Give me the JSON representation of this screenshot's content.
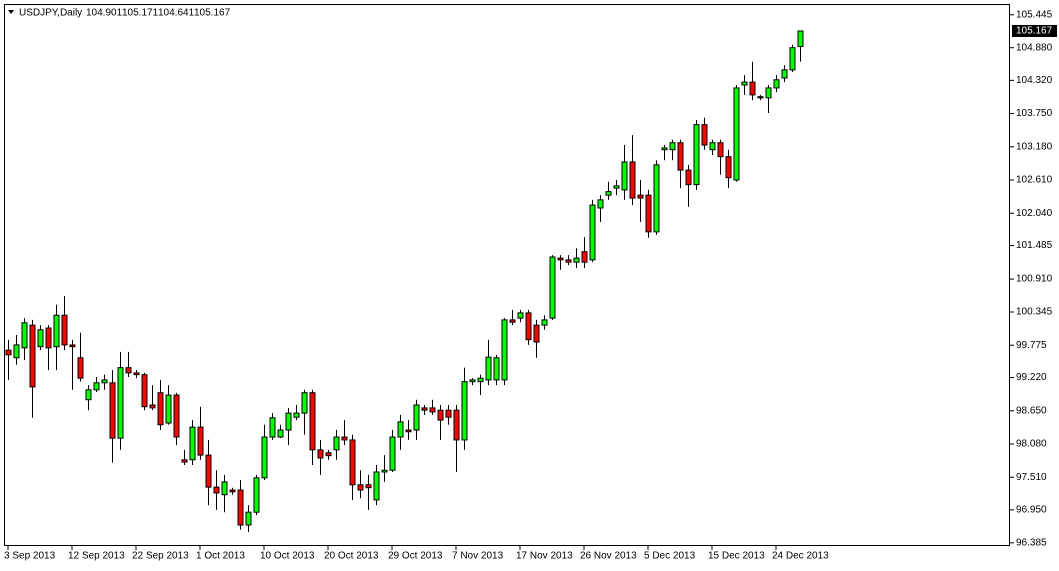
{
  "chart_data": {
    "type": "candlestick",
    "title": "USDJPY,Daily",
    "categories": [
      "3 Sep 2013",
      null,
      null,
      null,
      null,
      null,
      null,
      null,
      "12 Sep 2013",
      null,
      null,
      null,
      null,
      null,
      null,
      null,
      "22 Sep 2013",
      null,
      null,
      null,
      null,
      null,
      null,
      null,
      "1 Oct 2013",
      null,
      null,
      null,
      null,
      null,
      null,
      null,
      "10 Oct 2013",
      null,
      null,
      null,
      null,
      null,
      null,
      null,
      "20 Oct 2013",
      null,
      null,
      null,
      null,
      null,
      null,
      null,
      "29 Oct 2013",
      null,
      null,
      null,
      null,
      null,
      null,
      null,
      "7 Nov 2013",
      null,
      null,
      null,
      null,
      null,
      null,
      null,
      "17 Nov 2013",
      null,
      null,
      null,
      null,
      null,
      null,
      null,
      "26 Nov 2013",
      null,
      null,
      null,
      null,
      null,
      null,
      null,
      "5 Dec 2013",
      null,
      null,
      null,
      null,
      null,
      null,
      null,
      "15 Dec 2013",
      null,
      null,
      null,
      null,
      null,
      null,
      null,
      "24 Dec 2013",
      null,
      null,
      null
    ],
    "open": [
      99.69,
      99.56,
      99.73,
      100.12,
      99.75,
      100.07,
      99.75,
      100.29,
      99.78,
      99.56,
      98.84,
      99.01,
      99.13,
      99.13,
      98.18,
      99.39,
      99.3,
      99.27,
      98.75,
      98.96,
      98.44,
      98.92,
      97.81,
      97.81,
      98.37,
      97.89,
      97.34,
      97.21,
      97.29,
      97.29,
      96.69,
      96.91,
      97.5,
      98.2,
      98.2,
      98.32,
      98.54,
      98.61,
      98.96,
      97.98,
      97.93,
      97.98,
      98.2,
      98.15,
      97.38,
      97.38,
      97.12,
      97.6,
      97.63,
      98.2,
      98.32,
      98.32,
      98.7,
      98.7,
      98.66,
      98.66,
      98.66,
      98.15,
      99.15,
      99.15,
      99.18,
      99.18,
      99.18,
      100.21,
      100.24,
      100.33,
      100.12,
      100.12,
      100.24,
      101.27,
      101.24,
      101.2,
      101.38,
      101.24,
      102.13,
      102.35,
      102.47,
      102.44,
      102.92,
      102.35,
      102.35,
      101.72,
      103.13,
      103.13,
      103.25,
      102.78,
      102.53,
      103.56,
      103.13,
      103.25,
      103.01,
      102.61,
      104.24,
      104.29,
      104.04,
      104.02,
      104.19,
      104.36,
      104.5,
      104.901
    ],
    "high": [
      99.87,
      99.95,
      100.24,
      100.21,
      100.12,
      100.12,
      100.47,
      100.62,
      99.87,
      99.99,
      99.09,
      99.23,
      99.27,
      99.35,
      99.66,
      99.66,
      99.35,
      99.3,
      99.09,
      99.18,
      99.09,
      98.96,
      97.98,
      98.49,
      98.72,
      98.15,
      97.63,
      97.55,
      97.33,
      97.46,
      97.03,
      97.55,
      98.41,
      98.61,
      98.41,
      98.7,
      98.75,
      99.01,
      99.01,
      98.15,
      97.98,
      98.32,
      98.49,
      98.24,
      97.63,
      97.55,
      97.72,
      97.89,
      98.32,
      98.58,
      98.49,
      98.84,
      98.75,
      98.84,
      98.75,
      98.75,
      98.75,
      99.39,
      99.21,
      99.27,
      99.87,
      99.61,
      100.24,
      100.38,
      100.38,
      100.38,
      100.21,
      100.29,
      101.32,
      101.32,
      101.32,
      101.44,
      101.63,
      102.27,
      102.35,
      102.58,
      102.61,
      103.21,
      103.38,
      102.61,
      102.44,
      102.95,
      103.21,
      103.3,
      103.3,
      102.87,
      103.64,
      103.68,
      103.3,
      103.3,
      103.13,
      104.24,
      104.41,
      104.64,
      104.07,
      104.24,
      104.41,
      104.58,
      104.93,
      105.171
    ],
    "low": [
      99.18,
      99.44,
      99.52,
      98.53,
      99.69,
      99.35,
      99.35,
      99.69,
      99.01,
      99.15,
      98.66,
      98.97,
      99.01,
      97.76,
      97.98,
      99.23,
      99.21,
      98.66,
      98.66,
      98.32,
      98.41,
      98.06,
      97.72,
      97.72,
      97.81,
      97.03,
      96.95,
      96.91,
      97.21,
      96.61,
      96.57,
      96.86,
      97.46,
      98.15,
      98.18,
      98.06,
      98.49,
      98.24,
      97.72,
      97.55,
      97.81,
      97.81,
      98.06,
      97.12,
      97.15,
      96.95,
      97.03,
      97.43,
      97.6,
      97.98,
      98.15,
      98.15,
      98.58,
      98.58,
      98.15,
      98.41,
      97.6,
      97.98,
      99.09,
      98.92,
      99.09,
      99.09,
      99.09,
      100.12,
      100.17,
      99.78,
      99.56,
      100.04,
      100.21,
      101.07,
      101.15,
      101.1,
      101.1,
      101.2,
      101.89,
      102.27,
      102.35,
      102.27,
      102.18,
      101.89,
      101.62,
      101.67,
      102.95,
      102.95,
      102.47,
      102.15,
      102.44,
      103.13,
      103.04,
      102.7,
      102.47,
      102.58,
      104.07,
      103.98,
      103.98,
      103.76,
      104.12,
      104.29,
      104.46,
      104.641
    ],
    "close": [
      99.61,
      99.78,
      100.16,
      99.06,
      100.04,
      99.73,
      100.29,
      99.78,
      99.75,
      99.21,
      99.01,
      99.13,
      99.18,
      98.18,
      99.39,
      99.3,
      99.27,
      98.72,
      98.7,
      98.41,
      98.92,
      98.2,
      97.77,
      98.37,
      97.89,
      97.34,
      97.24,
      97.43,
      97.26,
      96.69,
      96.91,
      97.5,
      98.2,
      98.53,
      98.32,
      98.61,
      98.61,
      98.96,
      97.98,
      97.84,
      97.88,
      98.2,
      98.15,
      97.38,
      97.29,
      97.33,
      97.6,
      97.63,
      98.2,
      98.46,
      98.29,
      98.75,
      98.66,
      98.63,
      98.49,
      98.54,
      98.15,
      99.15,
      99.18,
      99.21,
      99.57,
      99.56,
      100.21,
      100.17,
      100.33,
      99.87,
      99.83,
      100.21,
      101.29,
      101.24,
      101.2,
      101.27,
      101.2,
      102.18,
      102.27,
      102.41,
      102.51,
      102.92,
      102.3,
      102.3,
      101.72,
      102.87,
      103.16,
      103.25,
      102.78,
      102.53,
      103.56,
      103.21,
      103.25,
      103.01,
      102.65,
      104.19,
      104.29,
      104.07,
      104.02,
      104.19,
      104.33,
      104.5,
      104.88,
      105.167
    ],
    "up_color": "#00ff00",
    "down_color": "#ff0000",
    "ylim": [
      96.33,
      105.63
    ],
    "yticks": [
      105.445,
      {
        "value": 104.88,
        "label": "104.880"
      },
      {
        "value": 104.32,
        "label": "104.320"
      },
      {
        "value": 103.75,
        "label": "103.750"
      },
      {
        "value": 103.18,
        "label": "103.180"
      },
      {
        "value": 102.61,
        "label": "102.610"
      },
      {
        "value": 102.04,
        "label": "102.040"
      },
      101.485,
      {
        "value": 100.91,
        "label": "100.910"
      },
      100.345,
      99.775,
      {
        "value": 99.22,
        "label": "99.220"
      },
      {
        "value": 98.65,
        "label": "98.650"
      },
      {
        "value": 98.08,
        "label": "98.080"
      },
      {
        "value": 97.51,
        "label": "97.510"
      },
      {
        "value": 96.95,
        "label": "96.950"
      },
      96.385
    ]
  }
}
